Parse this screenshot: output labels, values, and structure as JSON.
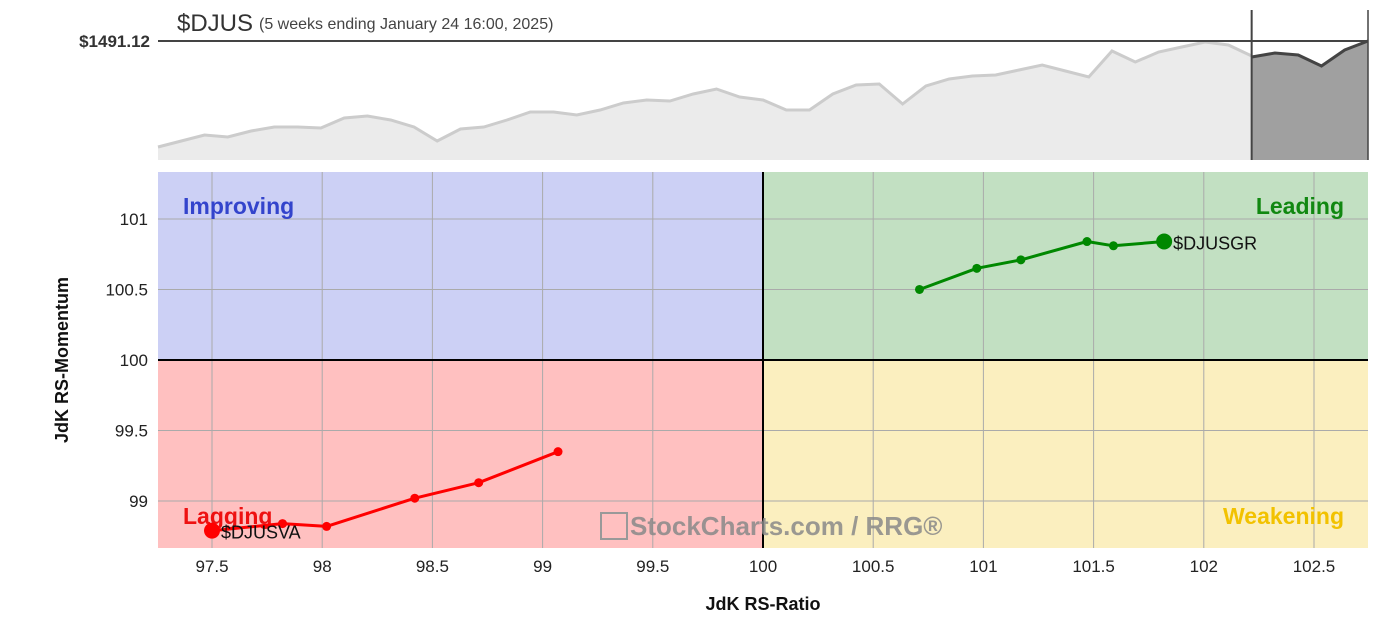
{
  "header": {
    "symbol": "$DJUS",
    "period": "(5 weeks ending January 24 16:00, 2025)",
    "last_price_label": "$1491.12"
  },
  "watermark": "StockCharts.com / RRG®",
  "price_chart": {
    "last_price": 1491.12,
    "history_color": "#cccccc",
    "recent_color": "#444444",
    "history": [
      1438.1,
      1441.1,
      1444.1,
      1443.1,
      1446.1,
      1448.1,
      1448.1,
      1447.6,
      1452.6,
      1453.6,
      1451.6,
      1448.1,
      1441.1,
      1447.1,
      1448.1,
      1451.6,
      1455.6,
      1455.6,
      1454.1,
      1456.6,
      1460.1,
      1461.6,
      1461.1,
      1464.6,
      1467.1,
      1463.1,
      1461.6,
      1456.6,
      1456.6,
      1464.6,
      1469.1,
      1469.6,
      1459.6,
      1468.6,
      1472.1,
      1473.6,
      1474.1,
      1476.6,
      1479.1,
      1476.1,
      1473.1,
      1486.1,
      1480.6,
      1485.6,
      1488.1,
      1490.6,
      1489.1,
      1483.6
    ],
    "recent": [
      1483.1,
      1485.1,
      1484.1,
      1478.6,
      1486.6,
      1491.12
    ]
  },
  "chart_data": {
    "type": "scatter",
    "xlabel": "JdK RS-Ratio",
    "ylabel": "JdK RS-Momentum",
    "xlim": [
      97.255,
      102.745
    ],
    "ylim": [
      98.667,
      101.333
    ],
    "xticks": [
      "97.5",
      "98",
      "98.5",
      "99",
      "99.5",
      "100",
      "100.5",
      "101",
      "101.5",
      "102",
      "102.5"
    ],
    "yticks": [
      "99",
      "99.5",
      "100",
      "100.5",
      "101"
    ],
    "grid": true,
    "quadrants": {
      "improving": {
        "label": "Improving",
        "fill": "#ccd0f5",
        "text": "#3344cc"
      },
      "leading": {
        "label": "Leading",
        "fill": "#c2e0c2",
        "text": "#118811"
      },
      "lagging": {
        "label": "Lagging",
        "fill": "#ffc0c0",
        "text": "#ee1111"
      },
      "weakening": {
        "label": "Weakening",
        "fill": "#fbefbf",
        "text": "#f2c200"
      }
    },
    "series": [
      {
        "name": "$DJUSGR",
        "color": "#008800",
        "x": [
          100.71,
          100.97,
          101.17,
          101.47,
          101.59,
          101.82
        ],
        "y": [
          100.5,
          100.65,
          100.71,
          100.84,
          100.81,
          100.84
        ]
      },
      {
        "name": "$DJUSVA",
        "color": "#ff0000",
        "x": [
          99.07,
          98.71,
          98.42,
          98.02,
          97.82,
          97.5
        ],
        "y": [
          99.35,
          99.13,
          99.02,
          98.82,
          98.84,
          98.79
        ]
      }
    ]
  }
}
